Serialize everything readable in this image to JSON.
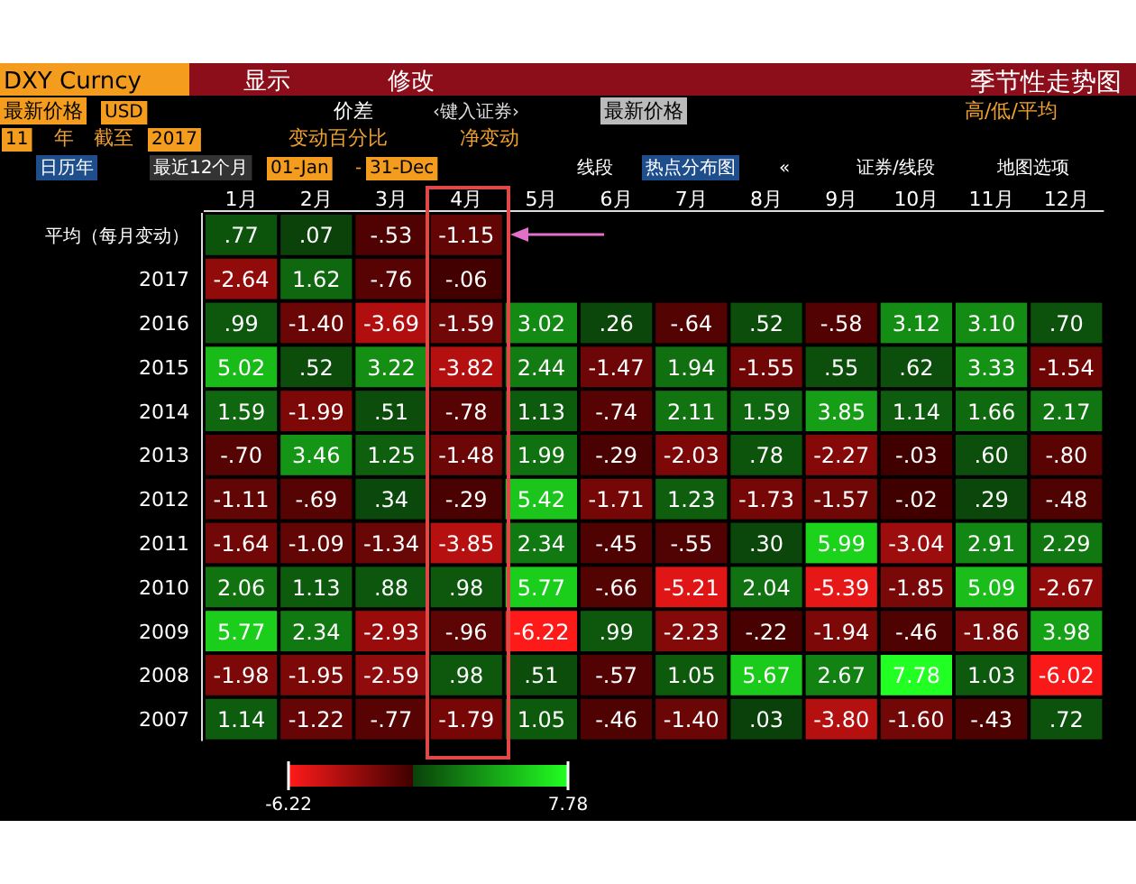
{
  "chart_data": {
    "type": "heatmap",
    "title": "季节性走势图",
    "categories": [
      "1月",
      "2月",
      "3月",
      "4月",
      "5月",
      "6月",
      "7月",
      "8月",
      "9月",
      "10月",
      "11月",
      "12月"
    ],
    "y_categories": [
      "平均（每月变动）",
      "2017",
      "2016",
      "2015",
      "2014",
      "2013",
      "2012",
      "2011",
      "2010",
      "2009",
      "2008",
      "2007"
    ],
    "cells": [
      [
        0.77,
        0.07,
        -0.53,
        -1.15,
        null,
        null,
        null,
        null,
        null,
        null,
        null,
        null
      ],
      [
        -2.64,
        1.62,
        -0.76,
        -0.06,
        null,
        null,
        null,
        null,
        null,
        null,
        null,
        null
      ],
      [
        0.99,
        -1.4,
        -3.69,
        -1.59,
        3.02,
        0.26,
        -0.64,
        0.52,
        -0.58,
        3.12,
        3.1,
        0.7
      ],
      [
        5.02,
        0.52,
        3.22,
        -3.82,
        2.44,
        -1.47,
        1.94,
        -1.55,
        0.55,
        0.62,
        3.33,
        -1.54
      ],
      [
        1.59,
        -1.99,
        0.51,
        -0.78,
        1.13,
        -0.74,
        2.11,
        1.59,
        3.85,
        1.14,
        1.66,
        2.17
      ],
      [
        -0.7,
        3.46,
        1.25,
        -1.48,
        1.99,
        -0.29,
        -2.03,
        0.78,
        -2.27,
        -0.03,
        0.6,
        -0.8
      ],
      [
        -1.11,
        -0.69,
        0.34,
        -0.29,
        5.42,
        -1.71,
        1.23,
        -1.73,
        -1.57,
        -0.02,
        0.29,
        -0.48
      ],
      [
        -1.64,
        -1.09,
        -1.34,
        -3.85,
        2.34,
        -0.45,
        -0.55,
        0.3,
        5.99,
        -3.04,
        2.91,
        2.29
      ],
      [
        2.06,
        1.13,
        0.88,
        0.98,
        5.77,
        -0.66,
        -5.21,
        2.04,
        -5.39,
        -1.85,
        5.09,
        -2.67
      ],
      [
        5.77,
        2.34,
        -2.93,
        -0.96,
        -6.22,
        0.99,
        -2.23,
        -0.22,
        -1.94,
        -0.46,
        -1.86,
        3.98
      ],
      [
        -1.98,
        -1.95,
        -2.59,
        0.98,
        0.51,
        -0.57,
        1.05,
        5.67,
        2.67,
        7.78,
        1.03,
        -6.02
      ],
      [
        1.14,
        -1.22,
        -0.77,
        -1.79,
        1.05,
        -0.46,
        -1.4,
        0.03,
        -3.8,
        -1.6,
        -0.43,
        0.72
      ]
    ],
    "cell_labels": [
      [
        ".77",
        ".07",
        "-.53",
        "-1.15",
        null,
        null,
        null,
        null,
        null,
        null,
        null,
        null
      ],
      [
        "-2.64",
        "1.62",
        "-.76",
        "-.06",
        null,
        null,
        null,
        null,
        null,
        null,
        null,
        null
      ],
      [
        ".99",
        "-1.40",
        "-3.69",
        "-1.59",
        "3.02",
        ".26",
        "-.64",
        ".52",
        "-.58",
        "3.12",
        "3.10",
        ".70"
      ],
      [
        "5.02",
        ".52",
        "3.22",
        "-3.82",
        "2.44",
        "-1.47",
        "1.94",
        "-1.55",
        ".55",
        ".62",
        "3.33",
        "-1.54"
      ],
      [
        "1.59",
        "-1.99",
        ".51",
        "-.78",
        "1.13",
        "-.74",
        "2.11",
        "1.59",
        "3.85",
        "1.14",
        "1.66",
        "2.17"
      ],
      [
        "-.70",
        "3.46",
        "1.25",
        "-1.48",
        "1.99",
        "-.29",
        "-2.03",
        ".78",
        "-2.27",
        "-.03",
        ".60",
        "-.80"
      ],
      [
        "-1.11",
        "-.69",
        ".34",
        "-.29",
        "5.42",
        "-1.71",
        "1.23",
        "-1.73",
        "-1.57",
        "-.02",
        ".29",
        "-.48"
      ],
      [
        "-1.64",
        "-1.09",
        "-1.34",
        "-3.85",
        "2.34",
        "-.45",
        "-.55",
        ".30",
        "5.99",
        "-3.04",
        "2.91",
        "2.29"
      ],
      [
        "2.06",
        "1.13",
        ".88",
        ".98",
        "5.77",
        "-.66",
        "-5.21",
        "2.04",
        "-5.39",
        "-1.85",
        "5.09",
        "-2.67"
      ],
      [
        "5.77",
        "2.34",
        "-2.93",
        "-.96",
        "-6.22",
        ".99",
        "-2.23",
        "-.22",
        "-1.94",
        "-.46",
        "-1.86",
        "3.98"
      ],
      [
        "-1.98",
        "-1.95",
        "-2.59",
        ".98",
        ".51",
        "-.57",
        "1.05",
        "5.67",
        "2.67",
        "7.78",
        "1.03",
        "-6.02"
      ],
      [
        "1.14",
        "-1.22",
        "-.77",
        "-1.79",
        "1.05",
        "-.46",
        "-1.40",
        ".03",
        "-3.80",
        "-1.60",
        "-.43",
        ".72"
      ]
    ],
    "clim": [
      -6.22,
      7.78
    ],
    "cticks": [
      -6.22,
      7.78
    ],
    "annotations": [
      "DXY Curncy",
      "显示",
      "修改",
      "最新价格",
      "USD",
      "价差",
      "‹键入证券›",
      "最新价格",
      "高/低/平均",
      "11",
      "年",
      "截至",
      "2017",
      "变动百分比",
      "净变动",
      "日历年",
      "最近12个月",
      "01-Jan",
      "-",
      "31-Dec",
      "线段",
      "热点分布图",
      "«",
      "证券/线段",
      "地图选项"
    ]
  }
}
